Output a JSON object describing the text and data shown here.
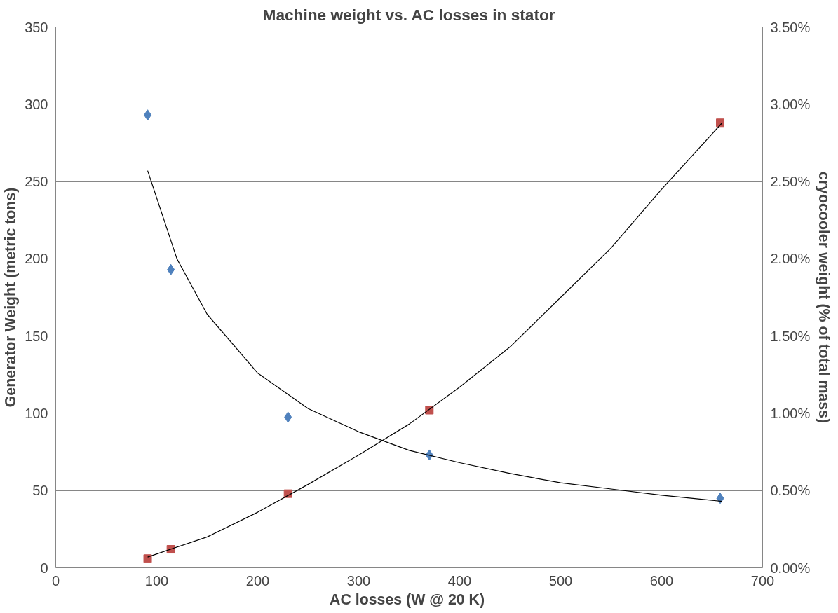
{
  "chart_data": {
    "type": "scatter",
    "title": "Machine weight vs. AC losses in stator",
    "xlabel": "AC losses (W @ 20  K)",
    "ylabel": "Generator Weight (metric tons)",
    "y2label": "cryocooler weight (% of total mass)",
    "xlim": [
      0,
      700
    ],
    "xticks": [
      0,
      100,
      200,
      300,
      400,
      500,
      600,
      700
    ],
    "ylim": [
      0,
      350
    ],
    "yticks": [
      0,
      50,
      100,
      150,
      200,
      250,
      300,
      350
    ],
    "y2lim": [
      0,
      3.5
    ],
    "y2ticks": [
      {
        "value": 0,
        "label": "0.00%"
      },
      {
        "value": 0.5,
        "label": "0.50%"
      },
      {
        "value": 1,
        "label": "1.00%"
      },
      {
        "value": 1.5,
        "label": "1.50%"
      },
      {
        "value": 2,
        "label": "2.00%"
      },
      {
        "value": 2.5,
        "label": "2.50%"
      },
      {
        "value": 3,
        "label": "3.00%"
      },
      {
        "value": 3.5,
        "label": "3.50%"
      }
    ],
    "grid": "y",
    "series": [
      {
        "marker": "diamond",
        "color": "#4f81bd",
        "x": [
          91,
          114,
          230,
          370,
          658
        ],
        "values": [
          293,
          193,
          97.5,
          73,
          45
        ]
      },
      {
        "marker": "square",
        "color": "#c0504d",
        "axis": "y2",
        "x": [
          91,
          114,
          230,
          370,
          658
        ],
        "values": [
          0.06,
          0.12,
          0.48,
          1.02,
          2.88
        ]
      },
      {
        "type": "line",
        "marker": "none",
        "color": "#000000",
        "x": [
          91,
          120,
          150,
          200,
          250,
          300,
          350,
          400,
          450,
          500,
          550,
          600,
          660
        ],
        "values": [
          257,
          200,
          164,
          126,
          103,
          88,
          76,
          68,
          61,
          55,
          51,
          47,
          43
        ]
      },
      {
        "type": "line",
        "marker": "none",
        "color": "#000000",
        "axis": "y2",
        "x": [
          91,
          150,
          200,
          250,
          300,
          350,
          400,
          450,
          500,
          550,
          600,
          660
        ],
        "values": [
          0.07,
          0.2,
          0.36,
          0.54,
          0.73,
          0.93,
          1.17,
          1.43,
          1.75,
          2.07,
          2.45,
          2.88
        ]
      }
    ]
  }
}
